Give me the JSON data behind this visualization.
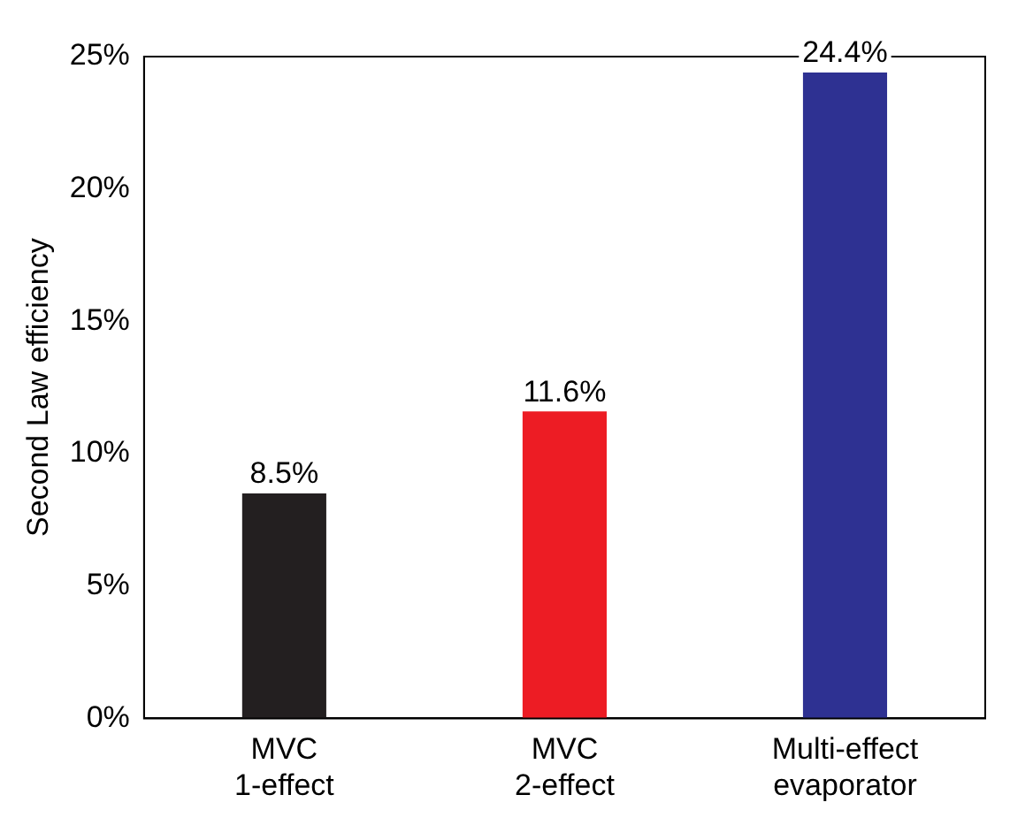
{
  "chart_data": {
    "type": "bar",
    "ylabel": "Second Law efficiency",
    "categories": [
      "MVC\n1-effect",
      "MVC\n2-effect",
      "Multi-effect\nevaporator"
    ],
    "values": [
      8.5,
      11.6,
      24.4
    ],
    "colors": [
      "#231f20",
      "#ed1c24",
      "#2e3192"
    ],
    "value_labels": [
      "8.5%",
      "11.6%",
      "24.4%"
    ],
    "ylim": [
      0,
      25
    ],
    "yticks": [
      {
        "value": 0,
        "label": "0%"
      },
      {
        "value": 5,
        "label": "5%"
      },
      {
        "value": 10,
        "label": "10%"
      },
      {
        "value": 15,
        "label": "15%"
      },
      {
        "value": 20,
        "label": "20%"
      },
      {
        "value": 25,
        "label": "25%"
      }
    ],
    "grid": false,
    "legend": false
  }
}
